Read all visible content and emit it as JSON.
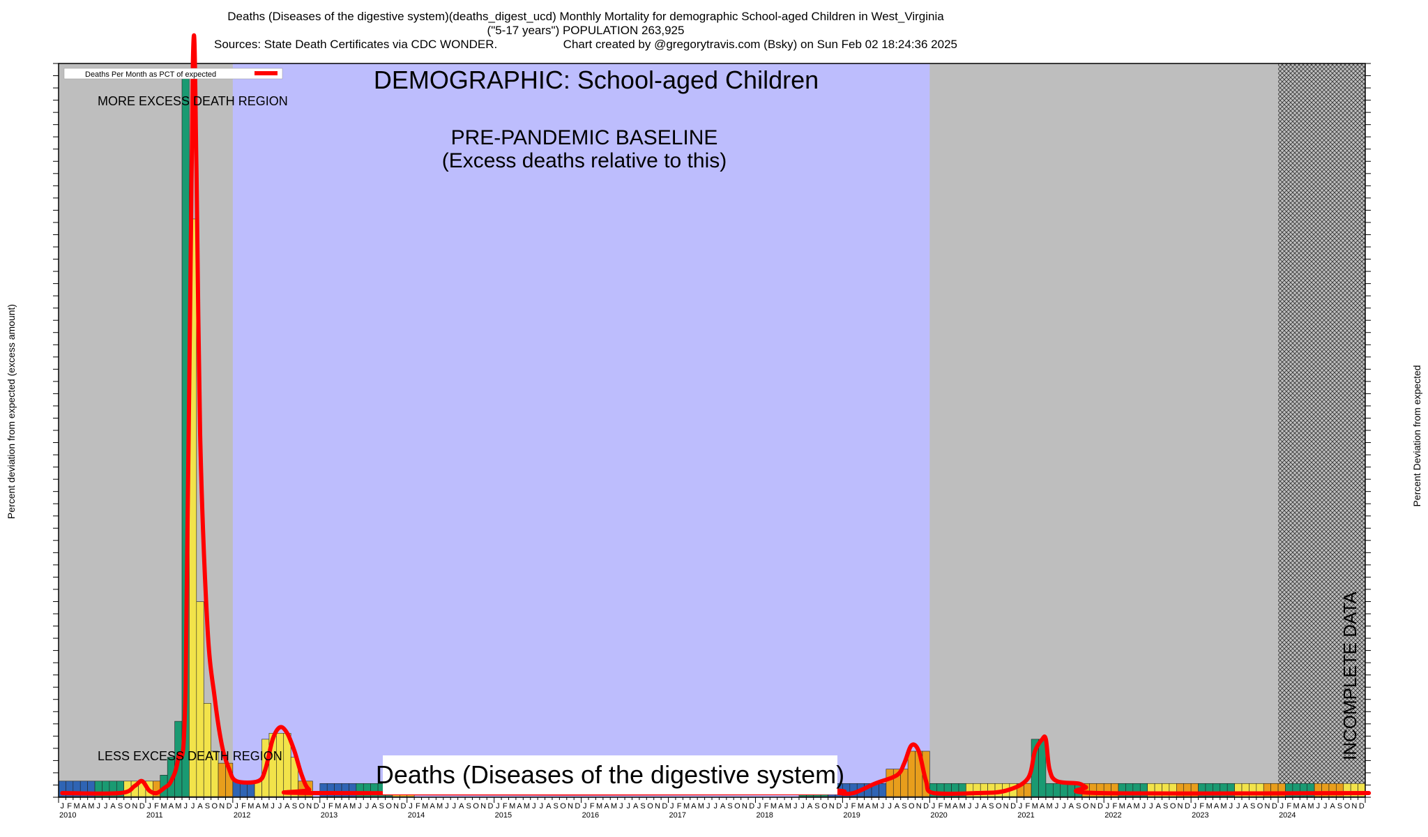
{
  "header": {
    "line1": "Deaths (Diseases of the digestive system)(deaths_digest_ucd) Monthly Mortality for demographic School-aged Children in West_Virginia",
    "line2": "(\"5-17 years\") POPULATION 263,925",
    "line3": "Sources: State Death Certificates via CDC WONDER.                    Chart created by @gregorytravis.com (Bsky) on Sun Feb 02 18:24:36 2025"
  },
  "colors": {
    "baseline_region": "#bdbdfd",
    "outside_region": "#bebebe",
    "line": "#ff0000",
    "bar_green": "#1a9a72",
    "bar_yellow": "#f2e34a",
    "bar_orange": "#e89e1c",
    "bar_blue": "#2f64b4"
  },
  "chart_data": {
    "type": "bar",
    "title": "DEMOGRAPHIC: School-aged Children",
    "bottom_title": "Deaths (Diseases of the digestive system)",
    "ylabel_left": "Percent deviation from expected (excess amount)",
    "ylabel_right": "Percent Deviation from expected",
    "legend": "Deaths Per Month as PCT of expected",
    "annotations": {
      "more": "MORE EXCESS DEATH REGION",
      "less": "LESS EXCESS DEATH REGION",
      "baseline_1": "PRE-PANDEMIC BASELINE",
      "baseline_2": "(Excess deaths relative to this)",
      "incomplete": "INCOMPLETE DATA"
    },
    "baseline_period": [
      "2012-01",
      "2019-12"
    ],
    "incomplete_period": [
      "2024-01",
      "2024-12"
    ],
    "month_letters": [
      "J",
      "F",
      "M",
      "A",
      "M",
      "J",
      "J",
      "A",
      "S",
      "O",
      "N",
      "D"
    ],
    "years": [
      "2010",
      "2011",
      "2012",
      "2013",
      "2014",
      "2015",
      "2016",
      "2017",
      "2018",
      "2019",
      "2020",
      "2021",
      "2022",
      "2023",
      "2024"
    ],
    "bar_segments": [
      {
        "start": 0,
        "end": 5,
        "value": 10,
        "color": "blue"
      },
      {
        "start": 5,
        "end": 9,
        "value": 10,
        "color": "green"
      },
      {
        "start": 9,
        "end": 13,
        "value": 10,
        "color": "yellow"
      },
      {
        "start": 13,
        "end": 14,
        "value": 10,
        "color": "orange"
      },
      {
        "start": 14,
        "end": 15,
        "value": 15,
        "color": "green"
      },
      {
        "start": 15,
        "end": 16,
        "value": 30,
        "color": "green"
      },
      {
        "start": 16,
        "end": 17,
        "value": 60,
        "color": "green"
      },
      {
        "start": 17,
        "end": 18,
        "value": 600,
        "color": "green"
      },
      {
        "start": 18,
        "end": 19,
        "value": 480,
        "color": "yellow"
      },
      {
        "start": 19,
        "end": 20,
        "value": 160,
        "color": "yellow"
      },
      {
        "start": 20,
        "end": 21,
        "value": 75,
        "color": "yellow"
      },
      {
        "start": 21,
        "end": 22,
        "value": 35,
        "color": "yellow"
      },
      {
        "start": 22,
        "end": 23,
        "value": 25,
        "color": "orange"
      },
      {
        "start": 23,
        "end": 24,
        "value": 25,
        "color": "orange"
      },
      {
        "start": 24,
        "end": 27,
        "value": 10,
        "color": "blue"
      },
      {
        "start": 27,
        "end": 28,
        "value": 10,
        "color": "yellow"
      },
      {
        "start": 28,
        "end": 29,
        "value": 45,
        "color": "yellow"
      },
      {
        "start": 29,
        "end": 32,
        "value": 50,
        "color": "yellow"
      },
      {
        "start": 32,
        "end": 33,
        "value": 30,
        "color": "yellow"
      },
      {
        "start": 33,
        "end": 35,
        "value": 10,
        "color": "orange"
      },
      {
        "start": 36,
        "end": 41,
        "value": 8,
        "color": "blue"
      },
      {
        "start": 41,
        "end": 46,
        "value": 8,
        "color": "green"
      },
      {
        "start": 46,
        "end": 49,
        "value": 8,
        "color": "yellow"
      },
      {
        "start": 102,
        "end": 106,
        "value": 8,
        "color": "green"
      },
      {
        "start": 106,
        "end": 114,
        "value": 8,
        "color": "blue"
      },
      {
        "start": 114,
        "end": 117,
        "value": 20,
        "color": "orange"
      },
      {
        "start": 117,
        "end": 119,
        "value": 35,
        "color": "orange"
      },
      {
        "start": 119,
        "end": 120,
        "value": 35,
        "color": "orange"
      },
      {
        "start": 120,
        "end": 125,
        "value": 8,
        "color": "green"
      },
      {
        "start": 125,
        "end": 132,
        "value": 8,
        "color": "yellow"
      },
      {
        "start": 132,
        "end": 134,
        "value": 8,
        "color": "orange"
      },
      {
        "start": 134,
        "end": 136,
        "value": 45,
        "color": "green"
      },
      {
        "start": 136,
        "end": 141,
        "value": 8,
        "color": "green"
      },
      {
        "start": 141,
        "end": 144,
        "value": 8,
        "color": "orange"
      },
      {
        "start": 144,
        "end": 146,
        "value": 8,
        "color": "orange"
      },
      {
        "start": 146,
        "end": 150,
        "value": 8,
        "color": "green"
      },
      {
        "start": 150,
        "end": 154,
        "value": 8,
        "color": "yellow"
      },
      {
        "start": 154,
        "end": 157,
        "value": 8,
        "color": "orange"
      },
      {
        "start": 157,
        "end": 162,
        "value": 8,
        "color": "green"
      },
      {
        "start": 162,
        "end": 166,
        "value": 8,
        "color": "yellow"
      },
      {
        "start": 166,
        "end": 169,
        "value": 8,
        "color": "orange"
      },
      {
        "start": 169,
        "end": 173,
        "value": 8,
        "color": "green"
      },
      {
        "start": 173,
        "end": 177,
        "value": 8,
        "color": "orange"
      },
      {
        "start": 177,
        "end": 180,
        "value": 8,
        "color": "yellow"
      }
    ],
    "line": [
      [
        0,
        0
      ],
      [
        8,
        0
      ],
      [
        10,
        6
      ],
      [
        11,
        10
      ],
      [
        12,
        2
      ],
      [
        13,
        0
      ],
      [
        14,
        4
      ],
      [
        15,
        10
      ],
      [
        16,
        30
      ],
      [
        17,
        90
      ],
      [
        18,
        610
      ],
      [
        18.5,
        520
      ],
      [
        19,
        300
      ],
      [
        20,
        140
      ],
      [
        21,
        80
      ],
      [
        22,
        40
      ],
      [
        23,
        20
      ],
      [
        24,
        10
      ],
      [
        27,
        10
      ],
      [
        28,
        20
      ],
      [
        29,
        45
      ],
      [
        30,
        55
      ],
      [
        31,
        50
      ],
      [
        32,
        35
      ],
      [
        33,
        15
      ],
      [
        34,
        3
      ],
      [
        36,
        0
      ],
      [
        102,
        0
      ],
      [
        105,
        3
      ],
      [
        107,
        0
      ],
      [
        109,
        0
      ],
      [
        112,
        8
      ],
      [
        115,
        15
      ],
      [
        116,
        25
      ],
      [
        117,
        40
      ],
      [
        118,
        35
      ],
      [
        119,
        10
      ],
      [
        120,
        0
      ],
      [
        126,
        0
      ],
      [
        130,
        2
      ],
      [
        133,
        12
      ],
      [
        134,
        35
      ],
      [
        135,
        45
      ],
      [
        135.5,
        45
      ],
      [
        136,
        20
      ],
      [
        137,
        10
      ],
      [
        140,
        8
      ],
      [
        141,
        5
      ],
      [
        143,
        0
      ],
      [
        180,
        0
      ]
    ],
    "ylim": [
      0,
      610
    ],
    "xlim": [
      0,
      180
    ],
    "grid": false
  }
}
